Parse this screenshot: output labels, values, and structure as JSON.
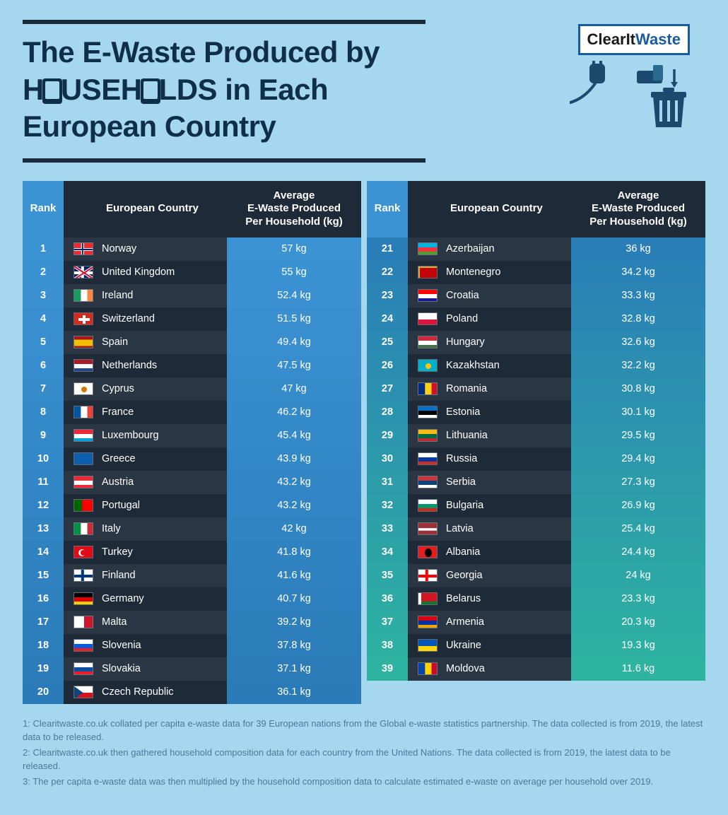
{
  "title_line1": "The E-Waste Produced by",
  "title_line2_a": "H",
  "title_line2_b": "USEH",
  "title_line2_c": "LDS in Each",
  "title_line3": "European Country",
  "logo_part1": "ClearIt",
  "logo_part2": "Waste",
  "columns": {
    "rank": "Rank",
    "country": "European Country",
    "value": "Average\nE-Waste Produced\nPer Household (kg)"
  },
  "colors": {
    "row_dark": "#2a3644",
    "row_darker": "#1e2a38",
    "rank_th": "#3c93d4"
  },
  "grad_start": "#3c93d4",
  "grad_mid": "#2a7bb8",
  "grad_end": "#2db3a0",
  "rows": [
    {
      "rank": 1,
      "country": "Norway",
      "value": "57 kg",
      "flag": {
        "bg": "#ef2b2d",
        "cross": "#fff",
        "inner": "#002868"
      }
    },
    {
      "rank": 2,
      "country": "United Kingdom",
      "value": "55 kg",
      "flag": {
        "bg": "#012169",
        "cross": "#fff",
        "diag": "#c8102e"
      }
    },
    {
      "rank": 3,
      "country": "Ireland",
      "value": "52.4 kg",
      "flag": {
        "tri": [
          "#169b62",
          "#fff",
          "#ff883e"
        ]
      }
    },
    {
      "rank": 4,
      "country": "Switzerland",
      "value": "51.5 kg",
      "flag": {
        "bg": "#d52b1e",
        "plus": "#fff"
      }
    },
    {
      "rank": 5,
      "country": "Spain",
      "value": "49.4 kg",
      "flag": {
        "hstripes": [
          "#aa151b",
          "#f1bf00",
          "#aa151b"
        ],
        "hratio": [
          1,
          2,
          1
        ]
      }
    },
    {
      "rank": 6,
      "country": "Netherlands",
      "value": "47.5 kg",
      "flag": {
        "hstripes": [
          "#ae1c28",
          "#fff",
          "#21468b"
        ]
      }
    },
    {
      "rank": 7,
      "country": "Cyprus",
      "value": "47 kg",
      "flag": {
        "bg": "#fff",
        "dot": "#d47600"
      }
    },
    {
      "rank": 8,
      "country": "France",
      "value": "46.2 kg",
      "flag": {
        "tri": [
          "#0055a4",
          "#fff",
          "#ef4135"
        ]
      }
    },
    {
      "rank": 9,
      "country": "Luxembourg",
      "value": "45.4 kg",
      "flag": {
        "hstripes": [
          "#ed2939",
          "#fff",
          "#00a1de"
        ]
      }
    },
    {
      "rank": 10,
      "country": "Greece",
      "value": "43.9 kg",
      "flag": {
        "bg": "#0d5eaf",
        "hline": "#fff"
      }
    },
    {
      "rank": 11,
      "country": "Austria",
      "value": "43.2 kg",
      "flag": {
        "hstripes": [
          "#ed2939",
          "#fff",
          "#ed2939"
        ]
      }
    },
    {
      "rank": 12,
      "country": "Portugal",
      "value": "43.2 kg",
      "flag": {
        "vtwo": [
          "#006600",
          "#ff0000"
        ],
        "vratio": [
          2,
          3
        ]
      }
    },
    {
      "rank": 13,
      "country": "Italy",
      "value": "42 kg",
      "flag": {
        "tri": [
          "#009246",
          "#fff",
          "#ce2b37"
        ]
      }
    },
    {
      "rank": 14,
      "country": "Turkey",
      "value": "41.8 kg",
      "flag": {
        "bg": "#e30a17",
        "crescent": "#fff"
      }
    },
    {
      "rank": 15,
      "country": "Finland",
      "value": "41.6 kg",
      "flag": {
        "bg": "#fff",
        "cross": "#003580"
      }
    },
    {
      "rank": 16,
      "country": "Germany",
      "value": "40.7 kg",
      "flag": {
        "hstripes": [
          "#000",
          "#dd0000",
          "#ffce00"
        ]
      }
    },
    {
      "rank": 17,
      "country": "Malta",
      "value": "39.2 kg",
      "flag": {
        "vtwo": [
          "#fff",
          "#cf142b"
        ]
      }
    },
    {
      "rank": 18,
      "country": "Slovenia",
      "value": "37.8 kg",
      "flag": {
        "hstripes": [
          "#fff",
          "#005ce5",
          "#ed1c24"
        ]
      }
    },
    {
      "rank": 19,
      "country": "Slovakia",
      "value": "37.1 kg",
      "flag": {
        "hstripes": [
          "#fff",
          "#0b4ea2",
          "#ee1c25"
        ]
      }
    },
    {
      "rank": 20,
      "country": "Czech Republic",
      "value": "36.1 kg",
      "flag": {
        "hstripes": [
          "#fff",
          "#d7141a"
        ],
        "wedge": "#11457e"
      }
    },
    {
      "rank": 21,
      "country": "Azerbaijan",
      "value": "36 kg",
      "flag": {
        "hstripes": [
          "#00b5e2",
          "#ef3340",
          "#509e2f"
        ]
      }
    },
    {
      "rank": 22,
      "country": "Montenegro",
      "value": "34.2 kg",
      "flag": {
        "bg": "#c40308",
        "border": "#d3ae3b"
      }
    },
    {
      "rank": 23,
      "country": "Croatia",
      "value": "33.3 kg",
      "flag": {
        "hstripes": [
          "#ff0000",
          "#fff",
          "#171796"
        ]
      }
    },
    {
      "rank": 24,
      "country": "Poland",
      "value": "32.8 kg",
      "flag": {
        "hstripes": [
          "#fff",
          "#dc143c"
        ]
      }
    },
    {
      "rank": 25,
      "country": "Hungary",
      "value": "32.6 kg",
      "flag": {
        "hstripes": [
          "#cd2a3e",
          "#fff",
          "#436f4d"
        ]
      }
    },
    {
      "rank": 26,
      "country": "Kazakhstan",
      "value": "32.2 kg",
      "flag": {
        "bg": "#00afca",
        "dot": "#fec50c"
      }
    },
    {
      "rank": 27,
      "country": "Romania",
      "value": "30.8 kg",
      "flag": {
        "tri": [
          "#002b7f",
          "#fcd116",
          "#ce1126"
        ]
      }
    },
    {
      "rank": 28,
      "country": "Estonia",
      "value": "30.1 kg",
      "flag": {
        "hstripes": [
          "#0072ce",
          "#000",
          "#fff"
        ]
      }
    },
    {
      "rank": 29,
      "country": "Lithuania",
      "value": "29.5 kg",
      "flag": {
        "hstripes": [
          "#fdb913",
          "#006a44",
          "#c1272d"
        ]
      }
    },
    {
      "rank": 30,
      "country": "Russia",
      "value": "29.4 kg",
      "flag": {
        "hstripes": [
          "#fff",
          "#0039a6",
          "#d52b1e"
        ]
      }
    },
    {
      "rank": 31,
      "country": "Serbia",
      "value": "27.3 kg",
      "flag": {
        "hstripes": [
          "#c6363c",
          "#0c4076",
          "#fff"
        ]
      }
    },
    {
      "rank": 32,
      "country": "Bulgaria",
      "value": "26.9 kg",
      "flag": {
        "hstripes": [
          "#fff",
          "#00966e",
          "#d62612"
        ]
      }
    },
    {
      "rank": 33,
      "country": "Latvia",
      "value": "25.4 kg",
      "flag": {
        "hstripes": [
          "#9e3039",
          "#fff",
          "#9e3039"
        ],
        "hratio": [
          2,
          1,
          2
        ]
      }
    },
    {
      "rank": 34,
      "country": "Albania",
      "value": "24.4 kg",
      "flag": {
        "bg": "#e41e20",
        "eagle": "#000"
      }
    },
    {
      "rank": 35,
      "country": "Georgia",
      "value": "24 kg",
      "flag": {
        "bg": "#fff",
        "cross": "#ff0000"
      }
    },
    {
      "rank": 36,
      "country": "Belarus",
      "value": "23.3 kg",
      "flag": {
        "hstripes": [
          "#ce1720",
          "#007c30"
        ],
        "hratio": [
          2,
          1
        ],
        "leftbar": "#fff"
      }
    },
    {
      "rank": 37,
      "country": "Armenia",
      "value": "20.3 kg",
      "flag": {
        "hstripes": [
          "#d90012",
          "#0033a0",
          "#f2a800"
        ]
      }
    },
    {
      "rank": 38,
      "country": "Ukraine",
      "value": "19.3 kg",
      "flag": {
        "hstripes": [
          "#0057b7",
          "#ffd700"
        ]
      }
    },
    {
      "rank": 39,
      "country": "Moldova",
      "value": "11.6 kg",
      "flag": {
        "tri": [
          "#0046ae",
          "#ffd200",
          "#cc092f"
        ]
      }
    }
  ],
  "footnotes": [
    "1: Clearitwaste.co.uk collated per capita e-waste data for 39 European nations from the Global e-waste statistics partnership. The data collected is from 2019, the latest data to be released.",
    "2: Clearitwaste.co.uk then gathered household composition data for each country from the United Nations. The data collected is from 2019, the latest data to be released.",
    "3: The per capita e-waste data was then multiplied by the household composition data to calculate estimated e-waste on average per household over 2019."
  ]
}
